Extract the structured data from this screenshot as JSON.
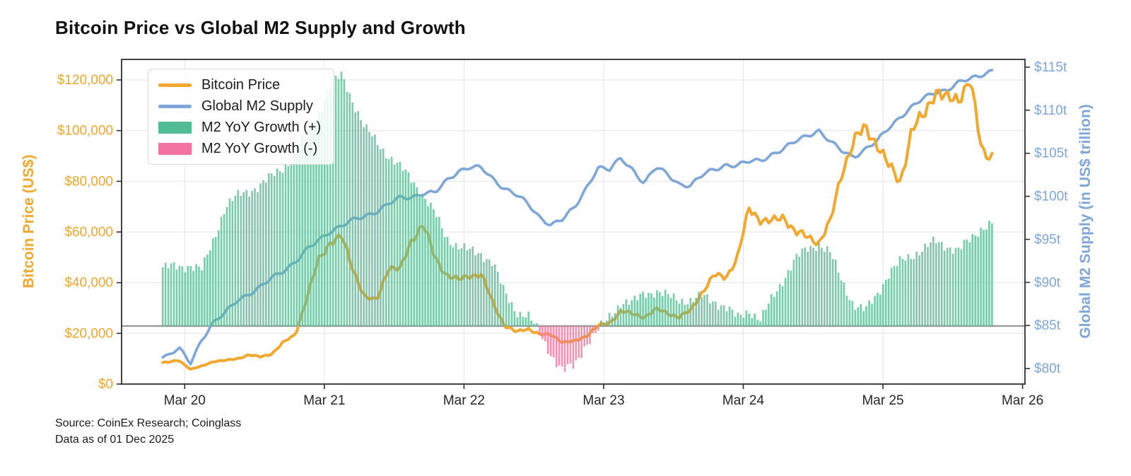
{
  "title": "Bitcoin Price vs Global M2 Supply and Growth",
  "source": {
    "line1": "Source: CoinEx Research; Coinglass",
    "line2": "Data as of 01 Dec 2025"
  },
  "legend": {
    "items": [
      {
        "label": "Bitcoin Price",
        "marker": "line",
        "color_key": "bitcoin"
      },
      {
        "label": "Global M2 Supply",
        "marker": "line",
        "color_key": "m2"
      },
      {
        "label": "M2 YoY Growth (+)",
        "marker": "rect",
        "color_key": "growth_pos"
      },
      {
        "label": "M2 YoY Growth (-)",
        "marker": "rect",
        "color_key": "growth_neg"
      }
    ]
  },
  "colors": {
    "bitcoin": "#F2A72E",
    "m2": "#7EA6D9",
    "growth_pos": "#52BD94",
    "growth_neg": "#F2739F",
    "baseline": "#9a9a9a",
    "grid": "#e4e4e4",
    "spine": "#2f2f2f",
    "xtick_text": "#262626"
  },
  "chart_data": {
    "type": "line+bar combo",
    "title": "Bitcoin Price vs Global M2 Supply and Growth",
    "x_axis": {
      "tick_labels": [
        "Mar 20",
        "Mar 21",
        "Mar 22",
        "Mar 23",
        "Mar 24",
        "Mar 25",
        "Mar 26"
      ],
      "tick_dates": [
        "2020-03",
        "2021-03",
        "2022-03",
        "2023-03",
        "2024-03",
        "2025-03",
        "2026-03"
      ]
    },
    "left_axis": {
      "label": "Bitcoin Price (US$)",
      "unit": "US$ thousand",
      "tick_values": [
        0,
        20,
        40,
        60,
        80,
        100,
        120
      ],
      "tick_labels": [
        "$0",
        "$20,000",
        "$40,000",
        "$60,000",
        "$80,000",
        "$100,000",
        "$120,000"
      ],
      "range": [
        0,
        128.1
      ],
      "grid": true
    },
    "right_axis": {
      "label": "Global M2 Supply (in US$ trillion)",
      "unit": "US$ trillion",
      "tick_values": [
        80,
        85,
        90,
        95,
        100,
        105,
        110,
        115
      ],
      "tick_labels": [
        "$80t",
        "$85t",
        "$90t",
        "$95t",
        "$100t",
        "$105t",
        "$110t",
        "$115t"
      ],
      "range": [
        78.2,
        115.9
      ]
    },
    "growth_axis": {
      "hidden": true,
      "unit": "% YoY",
      "range": [
        -4.35,
        19.98
      ],
      "zero_line": true
    },
    "timeline": {
      "start": "2020-01",
      "end": "2025-12",
      "frequency": "monthly",
      "points": 72
    },
    "series": [
      {
        "name": "Bitcoin Price",
        "axis": "left",
        "style": "line",
        "unit": "US$ thousand",
        "values": [
          8.5,
          9.4,
          5.8,
          7.1,
          9.0,
          9.3,
          10.0,
          11.5,
          10.7,
          12.0,
          16.5,
          19.5,
          34,
          49,
          56,
          58,
          45,
          34,
          33,
          46,
          45,
          57,
          63,
          50,
          43,
          41,
          43,
          43,
          32,
          23,
          20.5,
          22,
          19.5,
          19.5,
          16.5,
          16.8,
          19,
          23,
          24,
          29,
          27.5,
          26.5,
          29.5,
          28,
          26.5,
          29,
          36.5,
          43,
          42,
          50,
          69,
          65,
          64,
          66,
          60,
          58,
          56,
          64,
          84,
          96,
          101,
          95,
          86,
          80,
          100,
          106,
          116,
          112,
          113,
          120,
          92,
          90
        ]
      },
      {
        "name": "Global M2 Supply",
        "axis": "right",
        "style": "line",
        "unit": "US$ trillion",
        "values": [
          81.3,
          82.3,
          80.8,
          83.5,
          85.2,
          86.5,
          88.1,
          88.6,
          89.3,
          90.6,
          91.5,
          92.3,
          93.7,
          95.0,
          96.0,
          96.5,
          97.2,
          97.8,
          98.3,
          99.0,
          99.8,
          100.0,
          100.4,
          100.3,
          101.8,
          103.0,
          103.4,
          103.2,
          102.0,
          101.0,
          100.2,
          99.0,
          97.6,
          96.8,
          97.3,
          98.6,
          101.0,
          103.4,
          103.0,
          104.4,
          103.2,
          101.5,
          103.3,
          102.6,
          101.5,
          101.2,
          102.4,
          103.2,
          103.7,
          103.5,
          104.0,
          104.3,
          104.9,
          105.4,
          106.4,
          107.2,
          107.6,
          106.2,
          105.3,
          104.7,
          105.4,
          106.3,
          108.0,
          109.3,
          110.3,
          111.3,
          112.2,
          112.4,
          113.1,
          113.6,
          114.2,
          114.7
        ]
      },
      {
        "name": "M2 YoY Growth",
        "axis": "growth",
        "style": "bar",
        "unit": "%",
        "values": [
          4.4,
          4.4,
          4.6,
          4.2,
          6.5,
          9.0,
          9.7,
          10.1,
          10.6,
          11.2,
          11.9,
          12.8,
          14.3,
          15.9,
          18.0,
          18.8,
          16.8,
          14.8,
          13.8,
          12.8,
          11.9,
          11.0,
          9.8,
          8.4,
          6.6,
          6.0,
          5.6,
          5.4,
          4.8,
          2.4,
          1.1,
          0.8,
          -0.6,
          -2.1,
          -3.4,
          -3.0,
          -1.3,
          -0.4,
          0.7,
          1.8,
          1.7,
          2.5,
          2.6,
          2.2,
          2.0,
          1.9,
          2.2,
          1.9,
          1.4,
          0.6,
          1.2,
          0.4,
          2.1,
          3.6,
          5.0,
          5.8,
          6.2,
          5.4,
          3.4,
          1.6,
          1.1,
          2.4,
          3.9,
          4.8,
          5.3,
          5.8,
          6.3,
          6.0,
          5.7,
          6.4,
          7.4,
          7.8
        ]
      }
    ]
  }
}
